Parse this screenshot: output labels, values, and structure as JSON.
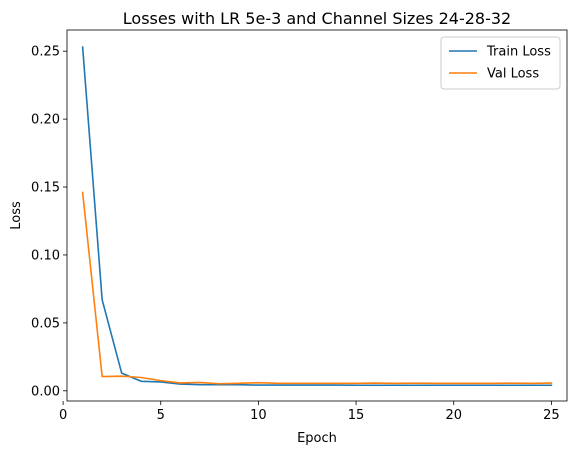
{
  "chart_data": {
    "type": "line",
    "title": "Losses with LR 5e-3 and Channel Sizes 24-28-32",
    "xlabel": "Epoch",
    "ylabel": "Loss",
    "xlim": [
      0.2,
      25.8
    ],
    "ylim": [
      -0.0075,
      0.2656
    ],
    "x_ticks": [
      0,
      5,
      10,
      15,
      20,
      25
    ],
    "x_tick_labels": [
      "0",
      "5",
      "10",
      "15",
      "20",
      "25"
    ],
    "y_ticks": [
      0.0,
      0.05,
      0.1,
      0.15,
      0.2,
      0.25
    ],
    "y_tick_labels": [
      "0.00",
      "0.05",
      "0.10",
      "0.15",
      "0.20",
      "0.25"
    ],
    "grid": false,
    "legend_position": "top-right",
    "x": [
      1,
      2,
      3,
      4,
      5,
      6,
      7,
      8,
      9,
      10,
      11,
      12,
      13,
      14,
      15,
      16,
      17,
      18,
      19,
      20,
      21,
      22,
      23,
      24,
      25
    ],
    "series": [
      {
        "name": "Train Loss",
        "color": "#1f77b4",
        "values": [
          0.253,
          0.067,
          0.013,
          0.007,
          0.0065,
          0.005,
          0.0045,
          0.0045,
          0.0045,
          0.0042,
          0.0042,
          0.0042,
          0.0042,
          0.0042,
          0.0041,
          0.0041,
          0.0041,
          0.0041,
          0.0041,
          0.0041,
          0.0041,
          0.0041,
          0.0041,
          0.0041,
          0.0041
        ]
      },
      {
        "name": "Val Loss",
        "color": "#ff7f0e",
        "values": [
          0.146,
          0.0105,
          0.0108,
          0.0098,
          0.0075,
          0.0058,
          0.0062,
          0.0052,
          0.0055,
          0.006,
          0.0055,
          0.0055,
          0.0055,
          0.0055,
          0.0055,
          0.0057,
          0.0055,
          0.0056,
          0.0055,
          0.0055,
          0.0055,
          0.0055,
          0.0056,
          0.0055,
          0.0057
        ]
      }
    ]
  }
}
